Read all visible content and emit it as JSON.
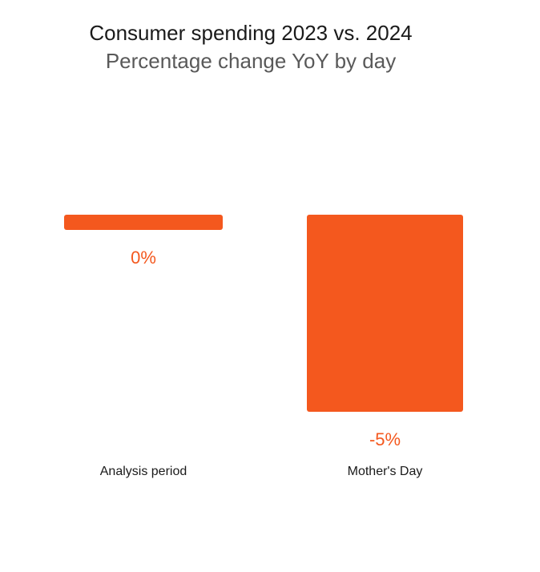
{
  "header": {
    "title": "Consumer spending 2023 vs. 2024",
    "subtitle": "Percentage change YoY by day"
  },
  "colors": {
    "accent_orange": "#F4581E",
    "title_text": "#1A1A1A",
    "subtitle_text": "#595959",
    "category_text": "#1A1A1A",
    "background": "#FFFFFF"
  },
  "chart_data": {
    "type": "bar",
    "title": "Consumer spending 2023 vs. 2024",
    "subtitle": "Percentage change YoY by day",
    "categories": [
      "Analysis period",
      "Mother's Day"
    ],
    "values": [
      0,
      -5
    ],
    "value_labels": [
      "0%",
      "-5%"
    ],
    "unit": "percent",
    "xlabel": "",
    "ylabel": "",
    "ylim": [
      -5,
      0
    ],
    "grid": false,
    "legend": false,
    "bar_color": "#F4581E",
    "value_label_color": "#F4581E",
    "layout_hint": "bars extend downward from zero baseline at top; value labels below bars; category labels along bottom"
  }
}
